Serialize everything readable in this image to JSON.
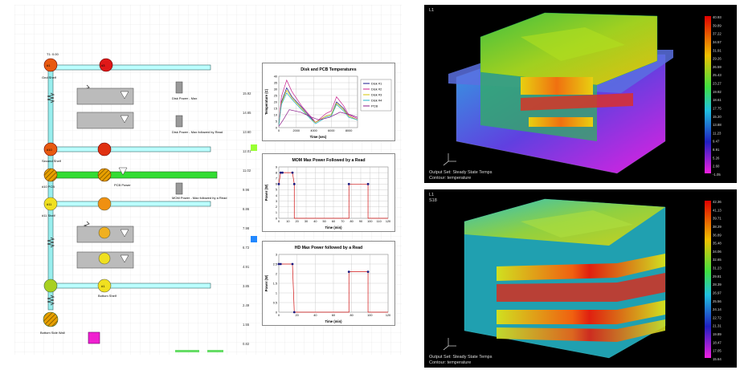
{
  "network": {
    "tl_lbl": "T1: 0.00",
    "nodes": [
      "#1",
      "#3",
      "#10",
      "#11",
      "#1"
    ],
    "lbls_left": [
      "Gnd Shelf",
      "Second Shelf",
      "#10 PCB",
      "#11 Shelf",
      "Bottom Shelf"
    ],
    "pcb_power": "PCB Power",
    "mom_lbl": "MOM Power - Max followed by a Read",
    "disk_lbl": "Disk Power - Max",
    "disk_lbl2": "Disk Power - Max followed by Read",
    "bottom_lbl": "Bottom Side Wall"
  },
  "scale_values": [
    "15.92",
    "14.65",
    "13.60",
    "12.01",
    "11.02",
    "9.96",
    "8.86",
    "7.98",
    "6.72",
    "4.91",
    "3.85",
    "2.49",
    "1.55",
    "0.82"
  ],
  "chart_data": [
    {
      "type": "line",
      "title": "Disk and PCB Temperatures",
      "xlabel": "Time (sec)",
      "ylabel": "Temperature (C)",
      "xlim": [
        0,
        9000
      ],
      "ylim": [
        0,
        40
      ],
      "xticks": [
        0,
        2000,
        4000,
        6000,
        8000
      ],
      "yticks": [
        0,
        5,
        10,
        15,
        20,
        25,
        30,
        35,
        40
      ],
      "legend": "right",
      "series": [
        {
          "name": "Disk #1",
          "color": "#1a1a8c",
          "x": [
            0,
            300,
            900,
            1500,
            2600,
            3600,
            4200,
            5400,
            6000,
            6600,
            7400,
            8000,
            9000
          ],
          "y": [
            2,
            20,
            31,
            24,
            16,
            8,
            4,
            9,
            10,
            20,
            15,
            9,
            6
          ]
        },
        {
          "name": "Disk #2",
          "color": "#c81e8c",
          "x": [
            0,
            300,
            900,
            1500,
            2600,
            3600,
            4200,
            5400,
            6000,
            6600,
            7400,
            8000,
            9000
          ],
          "y": [
            2,
            24,
            37,
            28,
            17,
            9,
            4,
            11,
            13,
            24,
            17,
            10,
            7
          ]
        },
        {
          "name": "Disk #3",
          "color": "#d4c400",
          "x": [
            0,
            300,
            900,
            1500,
            2600,
            3600,
            4200,
            5400,
            6000,
            6600,
            7400,
            8000,
            9000
          ],
          "y": [
            2,
            19,
            29,
            23,
            15,
            7,
            4,
            9,
            10,
            19,
            14,
            9,
            6
          ]
        },
        {
          "name": "Disk #4",
          "color": "#20b0c8",
          "x": [
            0,
            300,
            900,
            1500,
            2600,
            3600,
            4200,
            5400,
            6000,
            6600,
            7400,
            8000,
            9000
          ],
          "y": [
            2,
            18,
            27,
            22,
            14,
            7,
            3,
            8,
            9,
            18,
            13,
            8,
            6
          ]
        },
        {
          "name": "PCB",
          "color": "#8a1a8a",
          "x": [
            0,
            500,
            1200,
            2500,
            3800,
            4600,
            5800,
            7000,
            8200,
            9000
          ],
          "y": [
            1,
            6,
            14,
            12,
            8,
            6,
            8,
            12,
            10,
            8
          ]
        }
      ]
    },
    {
      "type": "line",
      "title": "MOM Max Power Followed by a Read",
      "xlabel": "Time (min)",
      "ylabel": "Power (W)",
      "xlim": [
        0,
        120
      ],
      "ylim": [
        0,
        9
      ],
      "xticks": [
        0,
        10,
        20,
        30,
        40,
        50,
        60,
        70,
        80,
        90,
        100,
        110,
        120
      ],
      "yticks": [
        0,
        1,
        2,
        3,
        4,
        5,
        6,
        7,
        8,
        9
      ],
      "series": [
        {
          "name": "",
          "color": "#d01010",
          "x": [
            0,
            2,
            4,
            15,
            17,
            17,
            77,
            77,
            98,
            98,
            120
          ],
          "y": [
            6,
            8,
            8,
            8,
            6,
            0,
            0,
            6,
            6,
            0,
            0
          ]
        }
      ],
      "markers": {
        "x": [
          0,
          2,
          4,
          15,
          17,
          77,
          98
        ],
        "y": [
          6,
          8,
          8,
          8,
          6,
          6,
          6
        ]
      }
    },
    {
      "type": "line",
      "title": "HD Max Power followed by a Read",
      "xlabel": "Time (min)",
      "ylabel": "Power (W)",
      "xlim": [
        0,
        120
      ],
      "ylim": [
        0,
        3
      ],
      "xticks": [
        0,
        20,
        40,
        60,
        80,
        100,
        120
      ],
      "yticks": [
        0,
        0.5,
        1,
        1.5,
        2,
        2.5,
        3
      ],
      "series": [
        {
          "name": "",
          "color": "#d01010",
          "x": [
            0,
            2,
            15,
            17,
            17,
            77,
            77,
            98,
            98,
            120
          ],
          "y": [
            2.5,
            2.5,
            2.5,
            0,
            0,
            0,
            2.1,
            2.1,
            0,
            0
          ]
        }
      ],
      "markers": {
        "x": [
          0,
          2,
          15,
          17,
          77,
          98
        ],
        "y": [
          2.5,
          2.5,
          2.5,
          0,
          2.1,
          2.1
        ]
      }
    }
  ],
  "fea_top": {
    "label": "L1",
    "caption1": "Output Set: Steady State Temps",
    "caption2": "Contour: temperature",
    "scale": [
      "40.93",
      "39.89",
      "37.22",
      "34.57",
      "31.91",
      "29.26",
      "26.59",
      "25.43",
      "23.27",
      "19.92",
      "18.61",
      "17.75",
      "15.20",
      "13.88",
      "11.23",
      "9.47",
      "8.91",
      "5.26",
      "2.60",
      "-1.05"
    ]
  },
  "fea_bottom": {
    "label": "L1",
    "label2": "S18",
    "caption1": "Output Set: Steady State Temps",
    "caption2": "Contour: temperature",
    "scale": [
      "42.36",
      "41.13",
      "39.71",
      "38.29",
      "36.89",
      "35.48",
      "34.06",
      "32.65",
      "31.23",
      "29.81",
      "28.39",
      "26.97",
      "25.56",
      "24.14",
      "22.72",
      "21.31",
      "19.89",
      "18.47",
      "17.05",
      "15.64"
    ]
  }
}
